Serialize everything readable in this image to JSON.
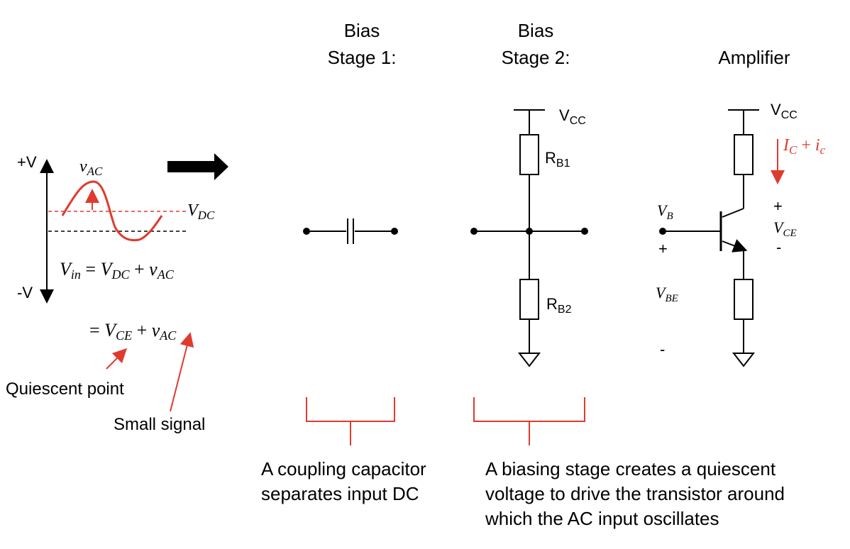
{
  "colors": {
    "accent_red": "#e03a2f",
    "ink": "#000000"
  },
  "headings": {
    "bias1_line1": "Bias",
    "bias1_line2": "Stage 1:",
    "bias2_line1": "Bias",
    "bias2_line2": "Stage 2:",
    "amplifier": "Amplifier"
  },
  "waveform": {
    "plus_v": "+V",
    "minus_v": "-V",
    "v_ac_main": "v",
    "v_ac_sub": "AC",
    "v_dc_main": "V",
    "v_dc_sub": "DC"
  },
  "equations": {
    "eq1": {
      "a": "V",
      "a_sub": "in",
      "eq": " = ",
      "b": "V",
      "b_sub": "DC",
      "plus": " + ",
      "c": "v",
      "c_sub": "AC"
    },
    "eq2": {
      "eq": "= ",
      "b": "V",
      "b_sub": "CE",
      "plus": " + ",
      "c": "v",
      "c_sub": "AC"
    }
  },
  "annotations": {
    "quiescent_point": "Quiescent point",
    "small_signal": "Small signal",
    "coupling_line1": "A coupling capacitor",
    "coupling_line2": "separates input DC",
    "biasing_line1": "A biasing stage creates a quiescent",
    "biasing_line2": "voltage to drive the transistor around",
    "biasing_line3": "which the AC input oscillates"
  },
  "stage2": {
    "vcc_main": "V",
    "vcc_sub": "CC",
    "rb1_main": "R",
    "rb1_sub": "B1",
    "rb2_main": "R",
    "rb2_sub": "B2"
  },
  "amplifier": {
    "vcc_main": "V",
    "vcc_sub": "CC",
    "ic_main": "I",
    "ic_sub": "C",
    "ic_plus": " + ",
    "ic2_main": "i",
    "ic2_sub": "c",
    "vb_main": "V",
    "vb_sub": "B",
    "plus_left": "+",
    "vbe_main": "V",
    "vbe_sub": "BE",
    "minus_left": "-",
    "plus_right": "+",
    "vce_main": "V",
    "vce_sub": "CE",
    "minus_right": "-"
  }
}
